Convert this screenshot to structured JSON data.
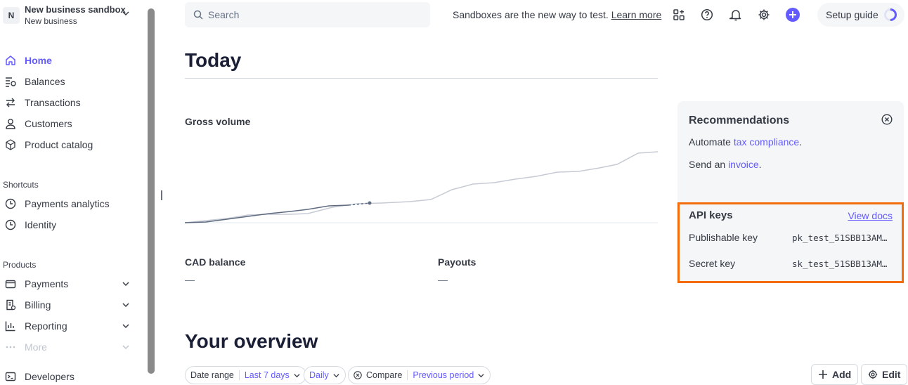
{
  "account": {
    "initial": "N",
    "name": "New business sandbox",
    "subtitle": "New business"
  },
  "nav": {
    "main": [
      {
        "label": "Home",
        "icon": "home-icon",
        "active": true
      },
      {
        "label": "Balances",
        "icon": "balances-icon"
      },
      {
        "label": "Transactions",
        "icon": "transactions-icon"
      },
      {
        "label": "Customers",
        "icon": "customers-icon"
      },
      {
        "label": "Product catalog",
        "icon": "product-catalog-icon"
      }
    ],
    "shortcuts_label": "Shortcuts",
    "shortcuts": [
      {
        "label": "Payments analytics",
        "icon": "clock-icon"
      },
      {
        "label": "Identity",
        "icon": "clock-icon"
      }
    ],
    "products_label": "Products",
    "products": [
      {
        "label": "Payments",
        "icon": "wallet-icon"
      },
      {
        "label": "Billing",
        "icon": "billing-icon"
      },
      {
        "label": "Reporting",
        "icon": "reporting-icon"
      },
      {
        "label": "More",
        "icon": "more-icon"
      }
    ],
    "developers": {
      "label": "Developers",
      "icon": "terminal-icon"
    }
  },
  "topbar": {
    "search_placeholder": "Search",
    "sandbox_note": "Sandboxes are the new way to test.",
    "learn_more": "Learn more",
    "setup_guide": "Setup guide"
  },
  "main": {
    "title": "Today",
    "gross_volume_label": "Gross volume",
    "metrics": [
      {
        "label": "CAD balance",
        "value": "—"
      },
      {
        "label": "Payouts",
        "value": "—"
      }
    ],
    "overview_title": "Your overview"
  },
  "recommendations": {
    "title": "Recommendations",
    "line1_prefix": "Automate ",
    "line1_link": "tax compliance",
    "line1_suffix": ".",
    "line2_prefix": "Send an ",
    "line2_link": "invoice",
    "line2_suffix": "."
  },
  "api_keys": {
    "title": "API keys",
    "view_docs": "View docs",
    "publishable_label": "Publishable key",
    "publishable_value": "pk_test_51SBB13AM…",
    "secret_label": "Secret key",
    "secret_value": "sk_test_51SBB13AM…",
    "highlight_color": "#f46c0a"
  },
  "filters": {
    "date_range_label": "Date range",
    "date_range_value": "Last 7 days",
    "interval_value": "Daily",
    "compare_label": "Compare",
    "compare_value": "Previous period"
  },
  "actions": {
    "add_label": "Add",
    "edit_label": "Edit"
  },
  "colors": {
    "accent": "#635bff",
    "text": "#353a44",
    "panel": "#f5f6f8"
  }
}
